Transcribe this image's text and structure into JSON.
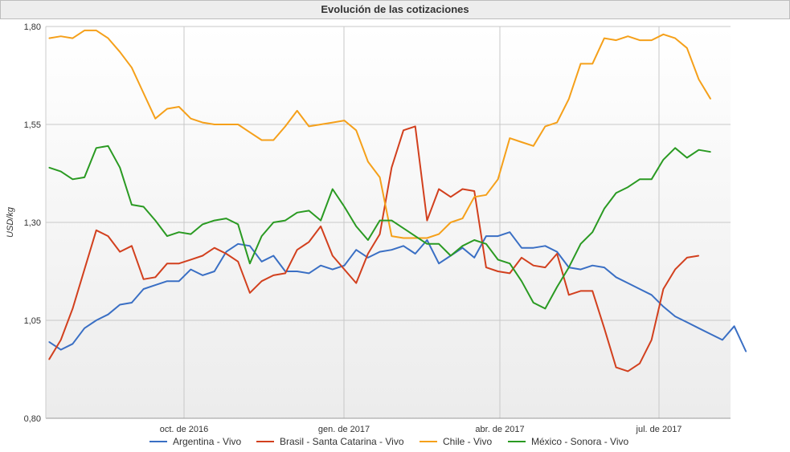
{
  "chart_data": {
    "type": "line",
    "title": "Evolución de las cotizaciones",
    "ylabel": "USD/kg",
    "ylim": [
      0.8,
      1.8
    ],
    "yticks": [
      "1,80",
      "1,55",
      "1,30",
      "1,05",
      "0,80"
    ],
    "ytick_values": [
      1.8,
      1.55,
      1.3,
      1.05,
      0.8
    ],
    "xticks": [
      "oct. de 2016",
      "gen. de 2017",
      "abr. de 2017",
      "jul. de 2017"
    ],
    "n_points": 60,
    "grid": true,
    "legend_position": "bottom",
    "series": [
      {
        "name": "Argentina - Vivo",
        "color": "#3a6fc4",
        "values": [
          0.995,
          0.975,
          0.99,
          1.03,
          1.05,
          1.065,
          1.09,
          1.095,
          1.13,
          1.14,
          1.15,
          1.15,
          1.18,
          1.165,
          1.175,
          1.225,
          1.245,
          1.24,
          1.2,
          1.215,
          1.175,
          1.175,
          1.17,
          1.19,
          1.18,
          1.19,
          1.23,
          1.21,
          1.225,
          1.23,
          1.24,
          1.22,
          1.255,
          1.195,
          1.215,
          1.235,
          1.21,
          1.265,
          1.265,
          1.275,
          1.235,
          1.235,
          1.24,
          1.225,
          1.185,
          1.18,
          1.19,
          1.185,
          1.16,
          1.145,
          1.13,
          1.115,
          1.085,
          1.06,
          1.045,
          1.03,
          1.015,
          1.0,
          1.035,
          0.97
        ]
      },
      {
        "name": "Brasil - Santa Catarina - Vivo",
        "color": "#d2401e",
        "values": [
          0.95,
          1.0,
          1.08,
          1.18,
          1.28,
          1.265,
          1.225,
          1.24,
          1.155,
          1.16,
          1.195,
          1.195,
          1.205,
          1.215,
          1.235,
          1.22,
          1.2,
          1.12,
          1.15,
          1.165,
          1.17,
          1.23,
          1.25,
          1.29,
          1.215,
          1.18,
          1.145,
          1.22,
          1.27,
          1.44,
          1.535,
          1.545,
          1.305,
          1.385,
          1.365,
          1.385,
          1.38,
          1.185,
          1.175,
          1.17,
          1.21,
          1.19,
          1.185,
          1.22,
          1.115,
          1.125,
          1.125,
          1.03,
          0.93,
          0.92,
          0.94,
          1.0,
          1.13,
          1.18,
          1.21,
          1.215
        ]
      },
      {
        "name": "Chile - Vivo",
        "color": "#f5a01a",
        "values": [
          1.77,
          1.775,
          1.77,
          1.79,
          1.79,
          1.77,
          1.735,
          1.695,
          1.63,
          1.565,
          1.59,
          1.595,
          1.565,
          1.555,
          1.55,
          1.55,
          1.55,
          1.53,
          1.51,
          1.51,
          1.545,
          1.585,
          1.545,
          1.55,
          1.555,
          1.56,
          1.535,
          1.455,
          1.415,
          1.265,
          1.26,
          1.26,
          1.26,
          1.27,
          1.3,
          1.31,
          1.365,
          1.37,
          1.41,
          1.515,
          1.505,
          1.495,
          1.545,
          1.555,
          1.615,
          1.705,
          1.705,
          1.77,
          1.765,
          1.775,
          1.765,
          1.765,
          1.78,
          1.77,
          1.745,
          1.665,
          1.615
        ]
      },
      {
        "name": "México - Sonora - Vivo",
        "color": "#2a9a22",
        "values": [
          1.44,
          1.43,
          1.41,
          1.415,
          1.49,
          1.495,
          1.44,
          1.345,
          1.34,
          1.305,
          1.265,
          1.275,
          1.27,
          1.295,
          1.305,
          1.31,
          1.295,
          1.195,
          1.265,
          1.3,
          1.305,
          1.325,
          1.33,
          1.305,
          1.385,
          1.34,
          1.29,
          1.255,
          1.305,
          1.305,
          1.285,
          1.265,
          1.245,
          1.245,
          1.215,
          1.24,
          1.255,
          1.245,
          1.205,
          1.195,
          1.15,
          1.095,
          1.08,
          1.135,
          1.185,
          1.245,
          1.275,
          1.335,
          1.375,
          1.39,
          1.41,
          1.41,
          1.46,
          1.49,
          1.465,
          1.485,
          1.48
        ]
      }
    ]
  }
}
